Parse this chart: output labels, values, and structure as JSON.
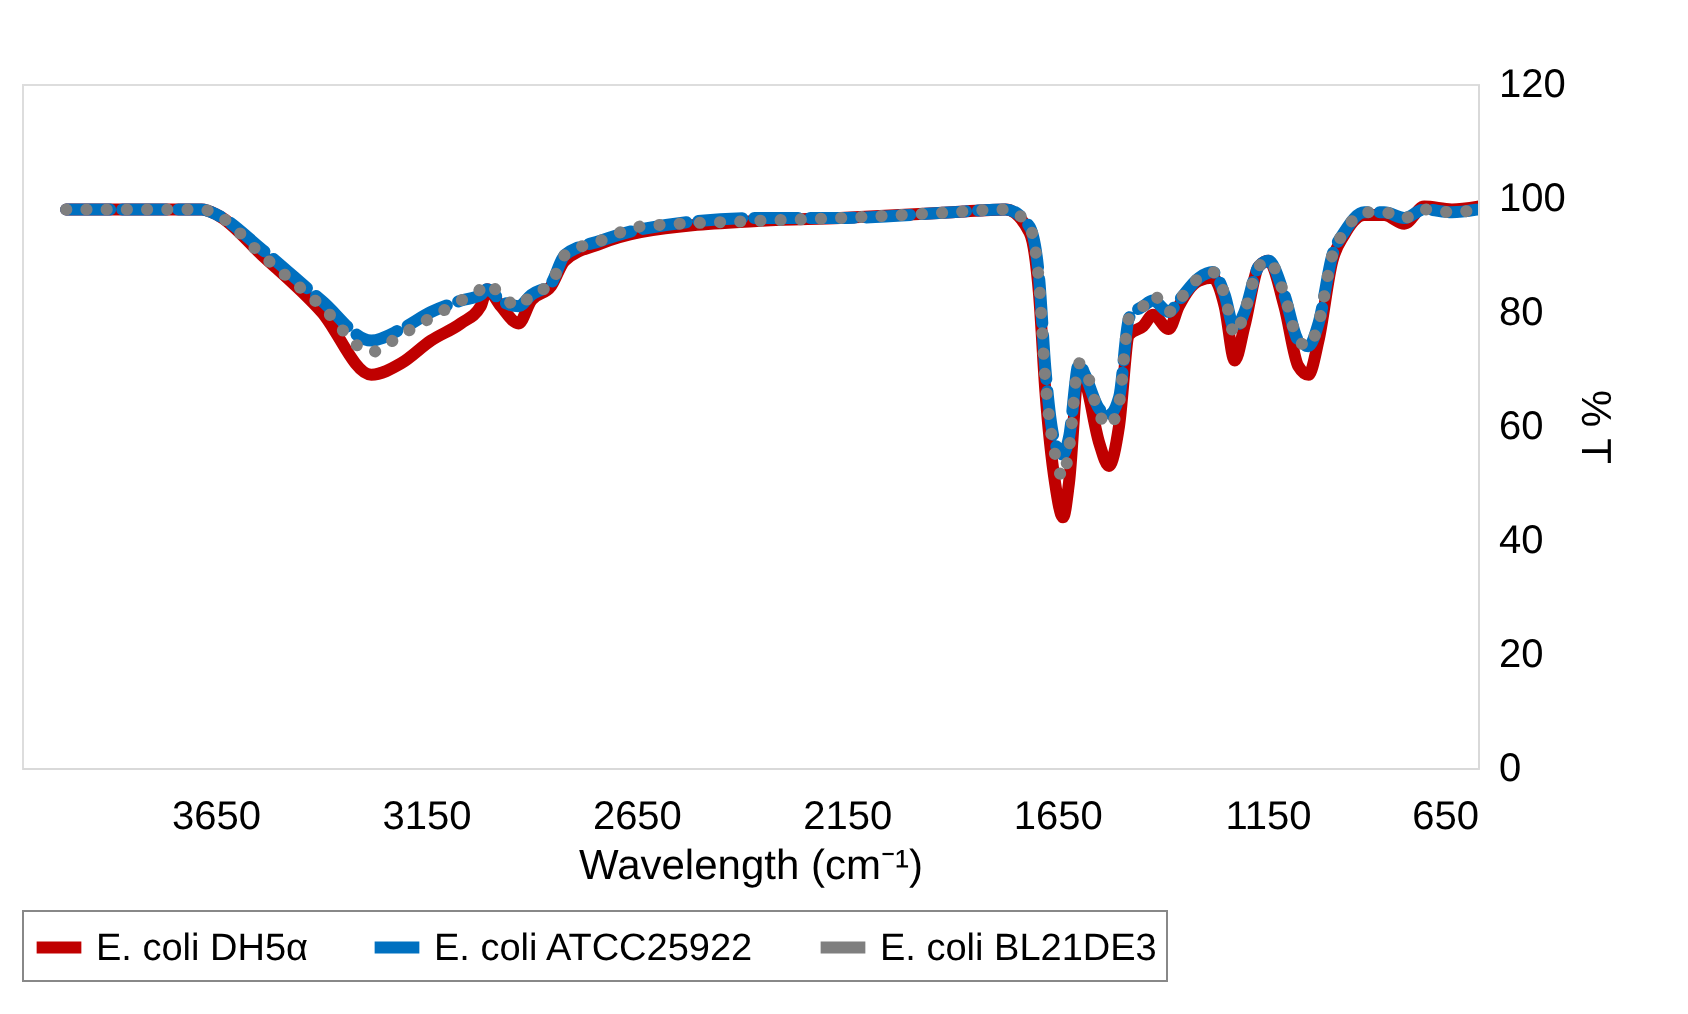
{
  "chart_data": {
    "type": "line",
    "xlabel": "Wavelength (cm⁻¹)",
    "ylabel": "% T",
    "xlim": [
      4110,
      650
    ],
    "xticks": [
      3650,
      3150,
      2650,
      2150,
      1650,
      1150,
      650
    ],
    "ylim": [
      0,
      120
    ],
    "yticks": [
      0,
      20,
      40,
      60,
      80,
      100,
      120
    ],
    "grid": false,
    "legend": "bottom",
    "marker": "none",
    "x": [
      4005,
      3683,
      3645,
      3540,
      3398,
      3280,
      3209,
      3138,
      3067,
      3020,
      3005,
      2972,
      2930,
      2900,
      2853,
      2820,
      2735,
      2640,
      2356,
      2166,
      1900,
      1773,
      1716,
      1693,
      1678,
      1655,
      1636,
      1622,
      1598,
      1584,
      1550,
      1527,
      1503,
      1479,
      1446,
      1422,
      1385,
      1361,
      1313,
      1280,
      1252,
      1228,
      1205,
      1171,
      1148,
      1110,
      1077,
      1053,
      1029,
      996,
      968,
      920,
      873,
      825,
      778,
      712,
      650
    ],
    "series": [
      {
        "name": "E. coli DH5α",
        "color": "#c00000",
        "line_style": "solid",
        "values": [
          98,
          98,
          97,
          90,
          80,
          69,
          71,
          75,
          78,
          81,
          84,
          81,
          78,
          82,
          84.5,
          89,
          92,
          94,
          96,
          96.5,
          97.5,
          98,
          94,
          83,
          66,
          50,
          44,
          50,
          70,
          68,
          57,
          53,
          60,
          76,
          77.5,
          79.5,
          77,
          81,
          85.5,
          86,
          81,
          71.5,
          77.5,
          88,
          89,
          81,
          70.5,
          69,
          75,
          89,
          93.5,
          97,
          97,
          95.5,
          98.5,
          98,
          98.5
        ]
      },
      {
        "name": "E. coli ATCC25922",
        "color": "#0070c0",
        "line_style": "dashed",
        "values": [
          98,
          98,
          97,
          91,
          82,
          75,
          77,
          80,
          82,
          83,
          84,
          82,
          81,
          83,
          85,
          90,
          92.5,
          94.5,
          96.5,
          96.5,
          97.5,
          98,
          95,
          86,
          70,
          57,
          55,
          58,
          71,
          69,
          63,
          62,
          65,
          79,
          81,
          82,
          80,
          82,
          86,
          87,
          83,
          77,
          80,
          88,
          89,
          83,
          75,
          74,
          78,
          90,
          94,
          97.5,
          97.5,
          96.5,
          98,
          97.5,
          98
        ]
      },
      {
        "name": "E. coli BL21DE3",
        "color": "#7f7f7f",
        "line_style": "dotted",
        "values": [
          98,
          98,
          97,
          90,
          81,
          73,
          76,
          79,
          82,
          84,
          85,
          83,
          81,
          83,
          85,
          90,
          92.5,
          95,
          96,
          96.5,
          97.5,
          98,
          95,
          85,
          68,
          55,
          51,
          56,
          71,
          70,
          62,
          60,
          64,
          79,
          81,
          83,
          80,
          82,
          86,
          87,
          83,
          76,
          80,
          88,
          89,
          83,
          75,
          74,
          78,
          90,
          94,
          97.5,
          97.5,
          96.5,
          98,
          97.5,
          98
        ]
      }
    ]
  }
}
